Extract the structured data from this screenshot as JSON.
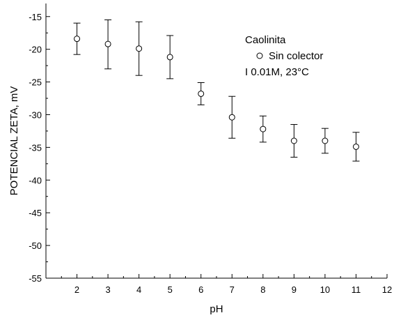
{
  "chart_data": {
    "type": "scatter",
    "xlabel": "pH",
    "ylabel": "POTENCIAL ZETA, mV",
    "xlim": [
      1,
      12
    ],
    "ylim": [
      -55,
      -13
    ],
    "x_ticks": [
      2,
      3,
      4,
      5,
      6,
      7,
      8,
      9,
      10,
      11,
      12
    ],
    "y_ticks": [
      -15,
      -20,
      -25,
      -30,
      -35,
      -40,
      -45,
      -50,
      -55
    ],
    "grid": false,
    "legend": {
      "placement": "top-right",
      "title": "Caolinita",
      "note": "I 0.01M, 23°C"
    },
    "series": [
      {
        "name": "Sin colector",
        "marker": "open-circle",
        "color": "#000000",
        "x": [
          2,
          3,
          4,
          5,
          6,
          7,
          8,
          9,
          10,
          11
        ],
        "y": [
          -18.4,
          -19.2,
          -19.9,
          -21.2,
          -26.8,
          -30.4,
          -32.2,
          -34.0,
          -34.0,
          -34.9
        ],
        "error_high": [
          -16.0,
          -15.5,
          -15.8,
          -17.9,
          -25.1,
          -27.2,
          -30.2,
          -31.5,
          -32.1,
          -32.7
        ],
        "error_low": [
          -20.8,
          -23.0,
          -24.0,
          -24.5,
          -28.5,
          -33.6,
          -34.2,
          -36.5,
          -35.9,
          -37.1
        ]
      }
    ]
  }
}
